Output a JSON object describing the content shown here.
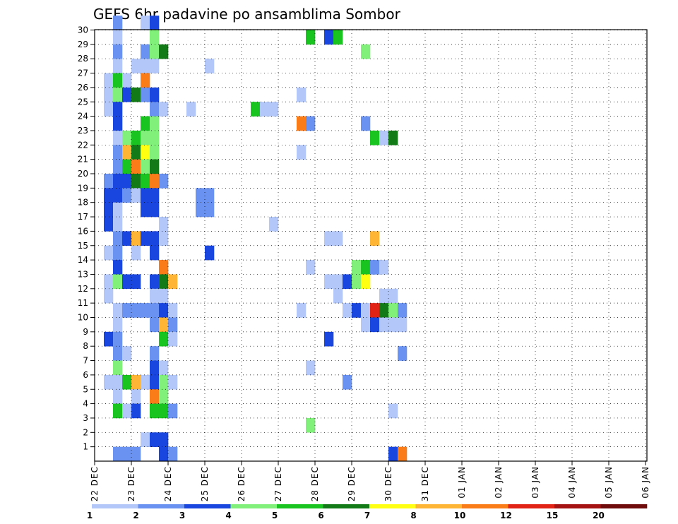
{
  "chart_data": {
    "type": "heatmap",
    "title": "GEFS 6hr padavine po ansamblima Sombor",
    "y_ticks": [
      1,
      2,
      3,
      4,
      5,
      6,
      7,
      8,
      9,
      10,
      11,
      12,
      13,
      14,
      15,
      16,
      17,
      18,
      19,
      20,
      21,
      22,
      23,
      24,
      25,
      26,
      27,
      28,
      29,
      30
    ],
    "x_ticks": [
      "22 DEC",
      "23 DEC",
      "24 DEC",
      "25 DEC",
      "26 DEC",
      "27 DEC",
      "28 DEC",
      "29 DEC",
      "30 DEC",
      "31 DEC",
      "01 JAN",
      "02 JAN",
      "03 JAN",
      "04 JAN",
      "05 JAN",
      "06 JAN"
    ],
    "grid": true,
    "x_steps": 61,
    "member_rows": 31,
    "colorbar": {
      "levels": [
        "1",
        "2",
        "3",
        "4",
        "5",
        "6",
        "7",
        "8",
        "10",
        "12",
        "15",
        "20"
      ],
      "colors": [
        "#b3c8f8",
        "#6a92f0",
        "#1a46e0",
        "#80f07a",
        "#19c421",
        "#137a18",
        "#ffff12",
        "#feb434",
        "#fa7c19",
        "#e02314",
        "#a51312",
        "#700b0b"
      ]
    },
    "cells": [
      [
        2,
        30,
        2
      ],
      [
        5,
        30,
        1
      ],
      [
        6,
        30,
        3
      ],
      [
        2,
        29,
        1
      ],
      [
        6,
        29,
        4
      ],
      [
        23,
        29,
        5
      ],
      [
        25,
        29,
        3
      ],
      [
        26,
        29,
        5
      ],
      [
        2,
        28,
        2
      ],
      [
        5,
        28,
        2
      ],
      [
        6,
        28,
        4
      ],
      [
        7,
        28,
        6
      ],
      [
        29,
        28,
        4
      ],
      [
        2,
        27,
        1
      ],
      [
        4,
        27,
        1
      ],
      [
        5,
        27,
        1
      ],
      [
        6,
        27,
        1
      ],
      [
        12,
        27,
        1
      ],
      [
        1,
        26,
        1
      ],
      [
        2,
        26,
        5
      ],
      [
        3,
        26,
        1
      ],
      [
        5,
        26,
        9
      ],
      [
        1,
        25,
        1
      ],
      [
        2,
        25,
        4
      ],
      [
        3,
        25,
        3
      ],
      [
        4,
        25,
        6
      ],
      [
        5,
        25,
        2
      ],
      [
        6,
        25,
        3
      ],
      [
        22,
        25,
        1
      ],
      [
        1,
        24,
        1
      ],
      [
        2,
        24,
        3
      ],
      [
        6,
        24,
        2
      ],
      [
        7,
        24,
        1
      ],
      [
        10,
        24,
        1
      ],
      [
        17,
        24,
        5
      ],
      [
        18,
        24,
        1
      ],
      [
        19,
        24,
        1
      ],
      [
        2,
        23,
        3
      ],
      [
        5,
        23,
        5
      ],
      [
        6,
        23,
        4
      ],
      [
        22,
        23,
        9
      ],
      [
        23,
        23,
        2
      ],
      [
        29,
        23,
        2
      ],
      [
        2,
        22,
        1
      ],
      [
        3,
        22,
        4
      ],
      [
        4,
        22,
        5
      ],
      [
        5,
        22,
        4
      ],
      [
        6,
        22,
        4
      ],
      [
        30,
        22,
        5
      ],
      [
        31,
        22,
        1
      ],
      [
        32,
        22,
        6
      ],
      [
        2,
        21,
        2
      ],
      [
        3,
        21,
        8
      ],
      [
        4,
        21,
        6
      ],
      [
        5,
        21,
        7
      ],
      [
        6,
        21,
        4
      ],
      [
        22,
        21,
        1
      ],
      [
        2,
        20,
        2
      ],
      [
        3,
        20,
        5
      ],
      [
        4,
        20,
        9
      ],
      [
        5,
        20,
        4
      ],
      [
        6,
        20,
        6
      ],
      [
        1,
        19,
        2
      ],
      [
        2,
        19,
        3
      ],
      [
        3,
        19,
        3
      ],
      [
        4,
        19,
        6
      ],
      [
        5,
        19,
        5
      ],
      [
        6,
        19,
        9
      ],
      [
        7,
        19,
        2
      ],
      [
        1,
        18,
        3
      ],
      [
        2,
        18,
        3
      ],
      [
        3,
        18,
        2
      ],
      [
        4,
        18,
        1
      ],
      [
        5,
        18,
        3
      ],
      [
        6,
        18,
        3
      ],
      [
        11,
        18,
        2
      ],
      [
        12,
        18,
        2
      ],
      [
        1,
        17,
        3
      ],
      [
        2,
        17,
        1
      ],
      [
        5,
        17,
        3
      ],
      [
        6,
        17,
        3
      ],
      [
        11,
        17,
        2
      ],
      [
        12,
        17,
        2
      ],
      [
        1,
        16,
        3
      ],
      [
        2,
        16,
        1
      ],
      [
        7,
        16,
        1
      ],
      [
        19,
        16,
        1
      ],
      [
        2,
        15,
        2
      ],
      [
        3,
        15,
        3
      ],
      [
        4,
        15,
        8
      ],
      [
        5,
        15,
        3
      ],
      [
        6,
        15,
        3
      ],
      [
        7,
        15,
        1
      ],
      [
        25,
        15,
        1
      ],
      [
        26,
        15,
        1
      ],
      [
        30,
        15,
        8
      ],
      [
        1,
        14,
        1
      ],
      [
        2,
        14,
        2
      ],
      [
        4,
        14,
        1
      ],
      [
        6,
        14,
        3
      ],
      [
        12,
        14,
        3
      ],
      [
        2,
        13,
        3
      ],
      [
        7,
        13,
        9
      ],
      [
        23,
        13,
        1
      ],
      [
        28,
        13,
        4
      ],
      [
        29,
        13,
        5
      ],
      [
        30,
        13,
        2
      ],
      [
        31,
        13,
        1
      ],
      [
        1,
        12,
        1
      ],
      [
        2,
        12,
        4
      ],
      [
        3,
        12,
        3
      ],
      [
        4,
        12,
        3
      ],
      [
        6,
        12,
        3
      ],
      [
        7,
        12,
        6
      ],
      [
        8,
        12,
        8
      ],
      [
        25,
        12,
        1
      ],
      [
        26,
        12,
        1
      ],
      [
        27,
        12,
        3
      ],
      [
        28,
        12,
        4
      ],
      [
        29,
        12,
        7
      ],
      [
        1,
        11,
        1
      ],
      [
        6,
        11,
        1
      ],
      [
        7,
        11,
        1
      ],
      [
        26,
        11,
        1
      ],
      [
        31,
        11,
        1
      ],
      [
        32,
        11,
        1
      ],
      [
        2,
        10,
        1
      ],
      [
        3,
        10,
        2
      ],
      [
        4,
        10,
        2
      ],
      [
        5,
        10,
        2
      ],
      [
        6,
        10,
        2
      ],
      [
        7,
        10,
        3
      ],
      [
        8,
        10,
        1
      ],
      [
        22,
        10,
        1
      ],
      [
        27,
        10,
        1
      ],
      [
        28,
        10,
        3
      ],
      [
        29,
        10,
        1
      ],
      [
        30,
        10,
        10
      ],
      [
        31,
        10,
        6
      ],
      [
        32,
        10,
        4
      ],
      [
        33,
        10,
        2
      ],
      [
        2,
        9,
        1
      ],
      [
        6,
        9,
        2
      ],
      [
        7,
        9,
        8
      ],
      [
        8,
        9,
        2
      ],
      [
        29,
        9,
        1
      ],
      [
        30,
        9,
        3
      ],
      [
        31,
        9,
        1
      ],
      [
        32,
        9,
        1
      ],
      [
        33,
        9,
        1
      ],
      [
        1,
        8,
        3
      ],
      [
        2,
        8,
        2
      ],
      [
        7,
        8,
        5
      ],
      [
        8,
        8,
        1
      ],
      [
        25,
        8,
        3
      ],
      [
        2,
        7,
        2
      ],
      [
        3,
        7,
        1
      ],
      [
        6,
        7,
        2
      ],
      [
        33,
        7,
        2
      ],
      [
        2,
        6,
        4
      ],
      [
        6,
        6,
        3
      ],
      [
        7,
        6,
        1
      ],
      [
        23,
        6,
        1
      ],
      [
        1,
        5,
        1
      ],
      [
        2,
        5,
        1
      ],
      [
        3,
        5,
        5
      ],
      [
        4,
        5,
        8
      ],
      [
        5,
        5,
        1
      ],
      [
        6,
        5,
        3
      ],
      [
        7,
        5,
        4
      ],
      [
        8,
        5,
        1
      ],
      [
        27,
        5,
        2
      ],
      [
        2,
        4,
        1
      ],
      [
        4,
        4,
        1
      ],
      [
        6,
        4,
        9
      ],
      [
        7,
        4,
        4
      ],
      [
        2,
        3,
        5
      ],
      [
        3,
        3,
        1
      ],
      [
        4,
        3,
        3
      ],
      [
        6,
        3,
        5
      ],
      [
        7,
        3,
        5
      ],
      [
        8,
        3,
        2
      ],
      [
        32,
        3,
        1
      ],
      [
        23,
        2,
        4
      ],
      [
        5,
        1,
        1
      ],
      [
        6,
        1,
        3
      ],
      [
        7,
        1,
        3
      ],
      [
        2,
        0,
        2
      ],
      [
        3,
        0,
        2
      ],
      [
        4,
        0,
        2
      ],
      [
        7,
        0,
        3
      ],
      [
        8,
        0,
        2
      ],
      [
        32,
        0,
        3
      ],
      [
        33,
        0,
        9
      ]
    ]
  }
}
